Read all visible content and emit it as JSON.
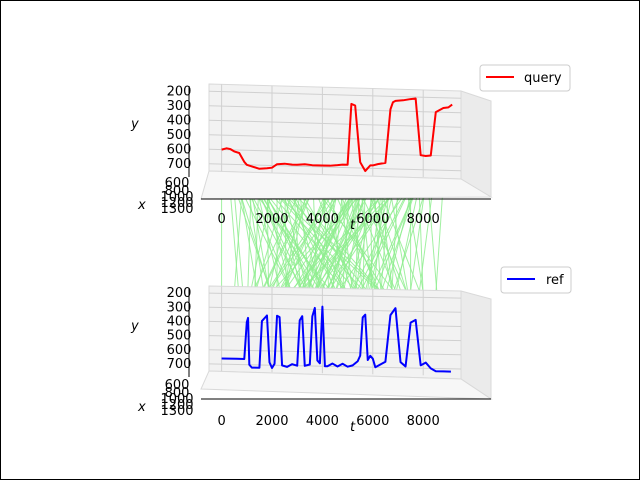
{
  "chart_data": [
    {
      "type": "line",
      "panel": "top",
      "title": "",
      "xlabel": "t",
      "ylabel": "y",
      "depth_label": "x",
      "legend": {
        "position": "upper-right",
        "entries": [
          "query"
        ]
      },
      "grid": true,
      "t_ticks": [
        "0",
        "2000",
        "4000",
        "6000",
        "8000"
      ],
      "y_ticks": [
        "200",
        "300",
        "400",
        "500",
        "600",
        "700"
      ],
      "x_ticks": [
        "600",
        "800",
        "1000",
        "1200",
        "1300"
      ],
      "tlim": [
        -500,
        9500
      ],
      "ylim": [
        750,
        150
      ],
      "series": [
        {
          "name": "query",
          "color": "#ff0000",
          "t": [
            0,
            200,
            350,
            500,
            700,
            900,
            1000,
            1200,
            1500,
            1800,
            2000,
            2200,
            2500,
            2800,
            3000,
            3300,
            3600,
            4000,
            4300,
            4600,
            4800,
            5000,
            5150,
            5300,
            5500,
            5700,
            5800,
            5900,
            6000,
            6200,
            6500,
            6700,
            6800,
            6900,
            7200,
            7500,
            7700,
            7900,
            8100,
            8300,
            8500,
            8800,
            9000,
            9150
          ],
          "y": [
            600,
            590,
            595,
            610,
            620,
            680,
            700,
            710,
            725,
            720,
            715,
            690,
            685,
            690,
            690,
            685,
            690,
            690,
            690,
            685,
            680,
            680,
            260,
            270,
            660,
            720,
            700,
            680,
            680,
            670,
            660,
            290,
            240,
            230,
            225,
            215,
            210,
            600,
            605,
            600,
            300,
            270,
            265,
            245
          ]
        }
      ]
    },
    {
      "type": "line",
      "panel": "bottom",
      "title": "",
      "xlabel": "t",
      "ylabel": "y",
      "depth_label": "x",
      "legend": {
        "position": "upper-right",
        "entries": [
          "ref"
        ]
      },
      "grid": true,
      "t_ticks": [
        "0",
        "2000",
        "4000",
        "6000",
        "8000"
      ],
      "y_ticks": [
        "200",
        "300",
        "400",
        "500",
        "600",
        "700"
      ],
      "x_ticks": [
        "600",
        "800",
        "1000",
        "1200",
        "1300"
      ],
      "tlim": [
        -500,
        9500
      ],
      "ylim": [
        750,
        150
      ],
      "series": [
        {
          "name": "ref",
          "color": "#0000ff",
          "t": [
            0,
            300,
            600,
            900,
            1000,
            1050,
            1100,
            1200,
            1500,
            1600,
            1800,
            1900,
            2000,
            2100,
            2200,
            2300,
            2400,
            2600,
            2800,
            3000,
            3100,
            3200,
            3300,
            3500,
            3600,
            3700,
            3800,
            3900,
            4000,
            4100,
            4200,
            4400,
            4600,
            4800,
            5000,
            5200,
            5400,
            5500,
            5600,
            5700,
            5800,
            5900,
            6000,
            6100,
            6300,
            6500,
            6700,
            6900,
            7100,
            7300,
            7500,
            7700,
            7900,
            8100,
            8300,
            8500,
            8800,
            9100
          ],
          "y": [
            660,
            660,
            660,
            660,
            400,
            370,
            700,
            720,
            720,
            390,
            350,
            680,
            720,
            690,
            350,
            360,
            700,
            710,
            690,
            700,
            380,
            350,
            700,
            690,
            350,
            290,
            660,
            680,
            280,
            700,
            700,
            680,
            700,
            680,
            700,
            690,
            660,
            620,
            350,
            330,
            650,
            620,
            640,
            700,
            680,
            660,
            330,
            280,
            660,
            690,
            380,
            360,
            680,
            660,
            700,
            720,
            720,
            720
          ]
        }
      ]
    }
  ]
}
